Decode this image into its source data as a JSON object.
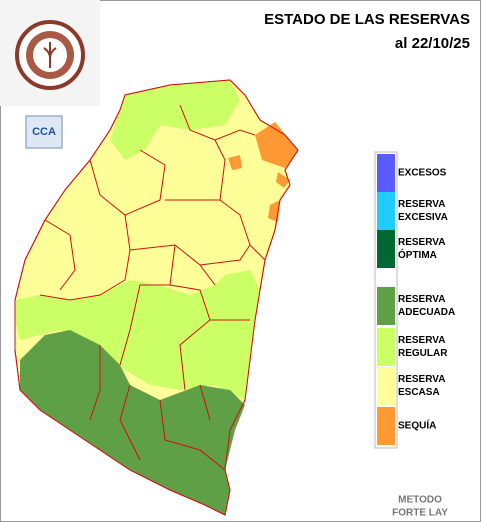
{
  "header": {
    "title": "ESTADO DE LAS RESERVAS",
    "date": "al 22/10/25"
  },
  "logo": {
    "label": "CCA"
  },
  "legend": [
    {
      "lines": [
        "EXCESOS"
      ],
      "color": "#5a5aff"
    },
    {
      "lines": [
        "RESERVA",
        "EXCESIVA"
      ],
      "color": "#22ccff"
    },
    {
      "lines": [
        "RESERVA",
        "ÓPTIMA"
      ],
      "color": "#006633"
    },
    {
      "lines": [
        "RESERVA",
        "ADECUADA"
      ],
      "color": "#5fa046"
    },
    {
      "lines": [
        "RESERVA",
        "REGULAR"
      ],
      "color": "#ccff66"
    },
    {
      "lines": [
        "RESERVA",
        "ESCASA"
      ],
      "color": "#ffff99"
    },
    {
      "lines": [
        "SEQUÍA"
      ],
      "color": "#ff9933"
    }
  ],
  "footer": {
    "lines": [
      "METODO",
      "FORTE LAY"
    ]
  }
}
